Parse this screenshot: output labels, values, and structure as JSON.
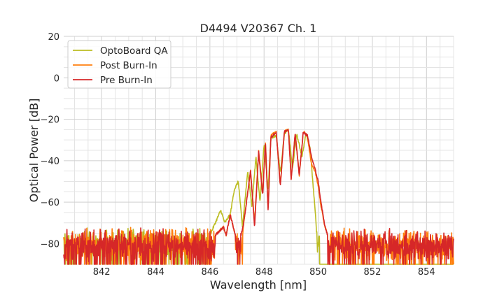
{
  "chart_data": {
    "type": "line",
    "title": "D4494 V20367 Ch. 1",
    "xlabel": "Wavelength [nm]",
    "ylabel": "Optical Power [dB]",
    "xlim": [
      840.6,
      855.0
    ],
    "ylim": [
      -90,
      20
    ],
    "xticks": [
      842,
      844,
      846,
      848,
      850,
      852,
      854
    ],
    "yticks": [
      -80,
      -60,
      -40,
      -20,
      0,
      20
    ],
    "grid": true,
    "legend_position": "top-left",
    "noise_floor": -80,
    "series": [
      {
        "name": "OptoBoard QA",
        "color": "#bcbd22",
        "x": [
          840.6,
          846.0,
          846.2,
          846.4,
          846.55,
          846.75,
          846.9,
          847.05,
          847.2,
          847.4,
          847.55,
          847.7,
          847.85,
          848.0,
          848.15,
          848.25,
          848.45,
          848.6,
          848.75,
          848.9,
          849.05,
          849.2,
          849.4,
          849.55,
          849.7,
          849.8,
          849.9,
          849.95,
          850.05,
          855.0
        ],
        "values": [
          -80,
          -76,
          -70,
          -64,
          -70,
          -66,
          -54,
          -50,
          -72,
          -45,
          -62,
          -38,
          -60,
          -32,
          -54,
          -29,
          -28,
          -46,
          -27,
          -25,
          -44,
          -27,
          -38,
          -27,
          -34,
          -50,
          -66,
          -78,
          -90,
          -90
        ]
      },
      {
        "name": "Post Burn-In",
        "color": "#ff7f0e",
        "x": [
          840.6,
          846.2,
          846.5,
          846.6,
          846.75,
          846.9,
          847.05,
          847.1,
          847.25,
          847.5,
          847.65,
          847.8,
          847.95,
          848.05,
          848.15,
          848.25,
          848.45,
          848.6,
          848.75,
          848.9,
          849.0,
          849.15,
          849.3,
          849.45,
          849.6,
          849.75,
          849.9,
          850.0,
          850.1,
          850.25,
          850.4,
          850.5,
          855.0
        ],
        "values": [
          -80,
          -76,
          -72,
          -76,
          -66,
          -74,
          -82,
          -90,
          -70,
          -45,
          -70,
          -35,
          -56,
          -31,
          -64,
          -28,
          -26,
          -52,
          -26,
          -25,
          -49,
          -27,
          -47,
          -26,
          -28,
          -42,
          -46,
          -52,
          -62,
          -72,
          -78,
          -80,
          -80
        ]
      },
      {
        "name": "Pre Burn-In",
        "color": "#d62728",
        "x": [
          840.6,
          846.2,
          846.5,
          846.6,
          846.75,
          846.9,
          847.05,
          847.25,
          847.5,
          847.65,
          847.8,
          847.95,
          848.05,
          848.15,
          848.25,
          848.45,
          848.6,
          848.75,
          848.9,
          849.0,
          849.15,
          849.3,
          849.45,
          849.6,
          849.75,
          849.9,
          850.0,
          850.1,
          850.25,
          850.4,
          850.5,
          855.0
        ],
        "values": [
          -80,
          -76,
          -72,
          -76,
          -66,
          -74,
          -82,
          -70,
          -45,
          -72,
          -36,
          -57,
          -31,
          -64,
          -29,
          -26,
          -52,
          -26,
          -25,
          -49,
          -27,
          -47,
          -26,
          -28,
          -38,
          -45,
          -50,
          -60,
          -72,
          -78,
          -80,
          -80
        ]
      }
    ]
  }
}
